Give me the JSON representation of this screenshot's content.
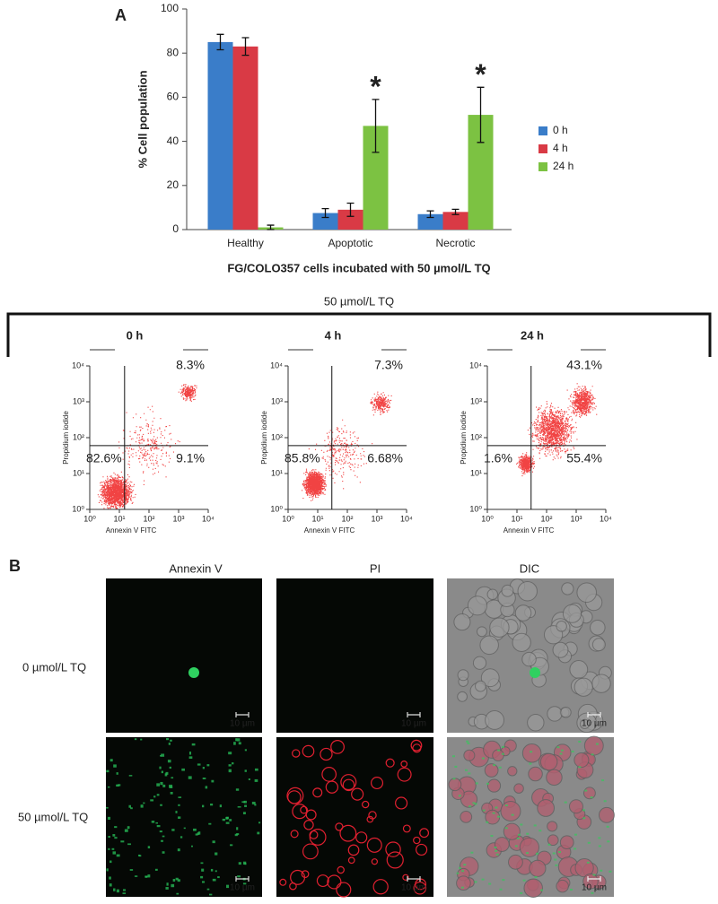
{
  "panel_labels": [
    "A",
    "B"
  ],
  "flow_group_title": "50 µmol/L TQ",
  "chart_data": [
    {
      "type": "bar",
      "ylabel": "% Cell population",
      "xlabel": "FG/COLO357 cells incubated with 50 µmol/L TQ",
      "categories": [
        "Healthy",
        "Apoptotic",
        "Necrotic"
      ],
      "series": [
        {
          "name": "0 h",
          "color": "#3a7dc9",
          "values": [
            85,
            7.5,
            7
          ],
          "errors": [
            3.5,
            2,
            1.5
          ]
        },
        {
          "name": "4 h",
          "color": "#d93a45",
          "values": [
            83,
            9,
            8
          ],
          "errors": [
            4,
            3,
            1.2
          ]
        },
        {
          "name": "24 h",
          "color": "#7cc242",
          "values": [
            1,
            47,
            52
          ],
          "errors": [
            1,
            12,
            12.5
          ]
        }
      ],
      "ylim": [
        0,
        100
      ],
      "yticks": [
        0,
        20,
        40,
        60,
        80,
        100
      ],
      "annotations": [
        {
          "text": "*",
          "category": "Apoptotic",
          "series": "24 h"
        },
        {
          "text": "*",
          "category": "Necrotic",
          "series": "24 h"
        }
      ]
    },
    {
      "type": "scatter",
      "title": "0 h",
      "xlabel": "Annexin V FITC",
      "ylabel": "Propidium iodide",
      "xscale": "log",
      "yscale": "log",
      "xlim": [
        1,
        10000
      ],
      "ylim": [
        1,
        10000
      ],
      "xticks": [
        {
          "value": 1,
          "label": "10⁰"
        },
        {
          "value": 10,
          "label": "10¹"
        },
        {
          "value": 100,
          "label": "10²"
        },
        {
          "value": 1000,
          "label": "10³"
        },
        {
          "value": 10000,
          "label": "10⁴"
        }
      ],
      "yticks": [
        {
          "value": 1,
          "label": "10⁰"
        },
        {
          "value": 10,
          "label": "10¹"
        },
        {
          "value": 100,
          "label": "10²"
        },
        {
          "value": 1000,
          "label": "10³"
        },
        {
          "value": 10000,
          "label": "10⁴"
        }
      ],
      "gate": [
        15,
        60
      ],
      "color": "#ee2222",
      "quadrant_labels": {
        "upper_right": "8.3%",
        "lower_left": "82.6%",
        "lower_right": "9.1%"
      }
    },
    {
      "type": "scatter",
      "title": "4 h",
      "xlabel": "Annexin V FITC",
      "ylabel": "Propidium iodide",
      "xscale": "log",
      "yscale": "log",
      "xlim": [
        1,
        10000
      ],
      "ylim": [
        1,
        10000
      ],
      "xticks": [
        {
          "value": 1,
          "label": "10⁰"
        },
        {
          "value": 10,
          "label": "10¹"
        },
        {
          "value": 100,
          "label": "10²"
        },
        {
          "value": 1000,
          "label": "10³"
        },
        {
          "value": 10000,
          "label": "10⁴"
        }
      ],
      "yticks": [
        {
          "value": 1,
          "label": "10⁰"
        },
        {
          "value": 10,
          "label": "10¹"
        },
        {
          "value": 100,
          "label": "10²"
        },
        {
          "value": 1000,
          "label": "10³"
        },
        {
          "value": 10000,
          "label": "10⁴"
        }
      ],
      "gate": [
        30,
        60
      ],
      "color": "#ee2222",
      "quadrant_labels": {
        "upper_right": "7.3%",
        "lower_left": "85.8%",
        "lower_right": "6.68%"
      }
    },
    {
      "type": "scatter",
      "title": "24 h",
      "xlabel": "Annexin V FITC",
      "ylabel": "Propidium iodide",
      "xscale": "log",
      "yscale": "log",
      "xlim": [
        1,
        10000
      ],
      "ylim": [
        1,
        10000
      ],
      "xticks": [
        {
          "value": 1,
          "label": "10⁰"
        },
        {
          "value": 10,
          "label": "10¹"
        },
        {
          "value": 100,
          "label": "10²"
        },
        {
          "value": 1000,
          "label": "10³"
        },
        {
          "value": 10000,
          "label": "10⁴"
        }
      ],
      "yticks": [
        {
          "value": 1,
          "label": "10⁰"
        },
        {
          "value": 10,
          "label": "10¹"
        },
        {
          "value": 100,
          "label": "10²"
        },
        {
          "value": 1000,
          "label": "10³"
        },
        {
          "value": 10000,
          "label": "10⁴"
        }
      ],
      "gate": [
        30,
        60
      ],
      "color": "#ee2222",
      "quadrant_labels": {
        "upper_right": "43.1%",
        "lower_left": "1.6%",
        "lower_right": "55.4%"
      }
    }
  ],
  "microscopy": {
    "columns": [
      "Annexin V",
      "PI",
      "DIC"
    ],
    "rows": [
      "0 µmol/L TQ",
      "50 µmol/L TQ"
    ],
    "scale_bar": "10 µm"
  }
}
